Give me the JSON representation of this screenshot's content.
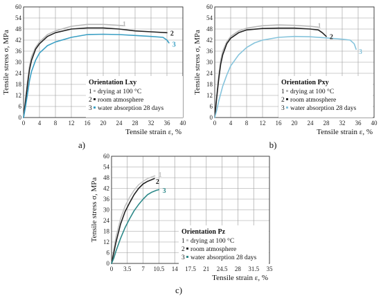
{
  "chart_data": [
    {
      "type": "line",
      "panel_label": "a)",
      "xlabel": "Tensile strain ε, %",
      "ylabel": "Tensile stress σ, MPa",
      "xlim": [
        0,
        40
      ],
      "ylim": [
        0,
        60
      ],
      "xticks": [
        "0",
        "4",
        "8",
        "12",
        "16",
        "20",
        "24",
        "28",
        "32",
        "36",
        "40"
      ],
      "yticks": [
        "0",
        "6",
        "12",
        "18",
        "24",
        "30",
        "36",
        "42",
        "48",
        "54",
        "60"
      ],
      "grid": true,
      "legend": {
        "title": "Orientation Lxy",
        "entries": [
          {
            "num": "1",
            "text": "drying at 100 °C"
          },
          {
            "num": "2",
            "text": "room atmosphere"
          },
          {
            "num": "3",
            "text": "water absorption 28 days"
          }
        ]
      },
      "series": [
        {
          "curve": "1",
          "color": "#b8b8b8",
          "x": [
            0,
            0.5,
            1,
            1.5,
            2,
            3,
            4,
            6,
            8,
            12,
            16,
            20,
            24,
            25
          ],
          "y": [
            0,
            10,
            20,
            28,
            33,
            38,
            41,
            45,
            47,
            49.5,
            50.5,
            50.5,
            50,
            49.8
          ]
        },
        {
          "curve": "2",
          "color": "#222222",
          "x": [
            0,
            0.5,
            1,
            1.5,
            2,
            3,
            4,
            6,
            8,
            12,
            16,
            20,
            24,
            28,
            32,
            36
          ],
          "y": [
            0,
            9,
            18,
            26,
            31,
            37,
            40,
            44,
            46,
            48,
            48.6,
            48.6,
            48,
            47,
            46.5,
            46
          ]
        },
        {
          "curve": "3",
          "color": "#3a9fc4",
          "x": [
            0,
            0.5,
            1,
            1.5,
            2,
            3,
            4,
            6,
            8,
            12,
            16,
            20,
            24,
            28,
            32,
            35,
            36,
            36.5
          ],
          "y": [
            0,
            6,
            13,
            20,
            25,
            31,
            35,
            39,
            41,
            43.5,
            45,
            45.2,
            45,
            44.5,
            44,
            43.5,
            42,
            40.5
          ]
        }
      ],
      "curve_labels": [
        {
          "text": "1",
          "x": 24.5,
          "y": 51
        },
        {
          "text": "2",
          "x": 36.5,
          "y": 46
        },
        {
          "text": "3",
          "x": 37,
          "y": 40
        }
      ]
    },
    {
      "type": "line",
      "panel_label": "b)",
      "xlabel": "Tensile strain ε, %",
      "ylabel": "Tensile stress σ, MPa",
      "xlim": [
        0,
        40
      ],
      "ylim": [
        0,
        60
      ],
      "xticks": [
        "0",
        "4",
        "8",
        "12",
        "16",
        "20",
        "24",
        "28",
        "32",
        "36",
        "40"
      ],
      "yticks": [
        "0",
        "6",
        "12",
        "18",
        "24",
        "30",
        "36",
        "42",
        "48",
        "54",
        "60"
      ],
      "grid": true,
      "legend": {
        "title": "Orientation Pxy",
        "entries": [
          {
            "num": "1",
            "text": "drying at 100 °C"
          },
          {
            "num": "2",
            "text": "room atmosphere"
          },
          {
            "num": "3",
            "text": "water absorption 28 days"
          }
        ]
      },
      "series": [
        {
          "curve": "1",
          "color": "#b8b8b8",
          "x": [
            0,
            0.5,
            1,
            1.5,
            2,
            3,
            4,
            6,
            8,
            12,
            16,
            20,
            24,
            26
          ],
          "y": [
            0,
            12,
            23,
            31,
            36,
            41,
            44,
            47,
            48.5,
            49.8,
            50.2,
            50,
            49.5,
            49
          ]
        },
        {
          "curve": "2",
          "color": "#222222",
          "x": [
            0,
            0.5,
            1,
            1.5,
            2,
            3,
            4,
            6,
            8,
            12,
            16,
            20,
            24,
            26,
            27,
            28
          ],
          "y": [
            0,
            11,
            21,
            29,
            34,
            40,
            43,
            46,
            47.5,
            48.3,
            48.5,
            48.5,
            48,
            47.5,
            46,
            44
          ]
        },
        {
          "curve": "3",
          "color": "#86c4dc",
          "x": [
            0,
            0.5,
            1,
            2,
            3,
            4,
            6,
            8,
            10,
            12,
            16,
            20,
            24,
            28,
            32,
            34,
            35,
            35.5
          ],
          "y": [
            0,
            4,
            9,
            17,
            23,
            28,
            34,
            38,
            40.5,
            42,
            43.5,
            44,
            43.8,
            43.2,
            42.5,
            42,
            40,
            37
          ]
        }
      ],
      "curve_labels": [
        {
          "text": "1",
          "x": 25.5,
          "y": 50
        },
        {
          "text": "2",
          "x": 28.5,
          "y": 44
        },
        {
          "text": "3",
          "x": 35.8,
          "y": 36
        }
      ]
    },
    {
      "type": "line",
      "panel_label": "c)",
      "xlabel": "Tensile strain ε, %",
      "ylabel": "Tensile stress σ, MPa",
      "xlim": [
        0,
        35
      ],
      "ylim": [
        0,
        60
      ],
      "xticks": [
        "0",
        "3.5",
        "7",
        "10.5",
        "14",
        "17.5",
        "21",
        "24.5",
        "28",
        "31.5",
        "35"
      ],
      "yticks": [
        "0",
        "6",
        "12",
        "18",
        "24",
        "30",
        "36",
        "42",
        "48",
        "54",
        "60"
      ],
      "grid": true,
      "legend": {
        "title": "Orientation Pz",
        "entries": [
          {
            "num": "1",
            "text": "drying at 100 °C"
          },
          {
            "num": "2",
            "text": "room atmosphere"
          },
          {
            "num": "3",
            "text": "water absorption 28 days"
          }
        ]
      },
      "series": [
        {
          "curve": "1",
          "color": "#c4c4c4",
          "x": [
            0,
            0.5,
            1,
            2,
            3,
            4,
            5,
            6,
            7,
            8,
            9,
            9.6
          ],
          "y": [
            0,
            8,
            15,
            25,
            32,
            37,
            41,
            44,
            46,
            47.5,
            48.5,
            49
          ]
        },
        {
          "curve": "2",
          "color": "#222222",
          "x": [
            0,
            0.5,
            1,
            2,
            3,
            4,
            5,
            6,
            7,
            8,
            9,
            9.5
          ],
          "y": [
            0,
            6,
            12,
            22,
            29,
            34,
            38.5,
            42,
            44.5,
            46,
            47,
            47.5
          ]
        },
        {
          "curve": "3",
          "color": "#2e8a8a",
          "x": [
            0,
            0.5,
            1,
            2,
            3,
            4,
            5,
            6,
            7,
            8,
            9,
            10,
            10.5
          ],
          "y": [
            0,
            3,
            7,
            14,
            20,
            25,
            29.5,
            33,
            36,
            38.5,
            40,
            41,
            41.3
          ]
        }
      ],
      "curve_labels": [
        {
          "text": "1",
          "x": 10.1,
          "y": 50
        },
        {
          "text": "2",
          "x": 9.5,
          "y": 46
        },
        {
          "text": "3",
          "x": 11,
          "y": 41
        }
      ]
    }
  ]
}
